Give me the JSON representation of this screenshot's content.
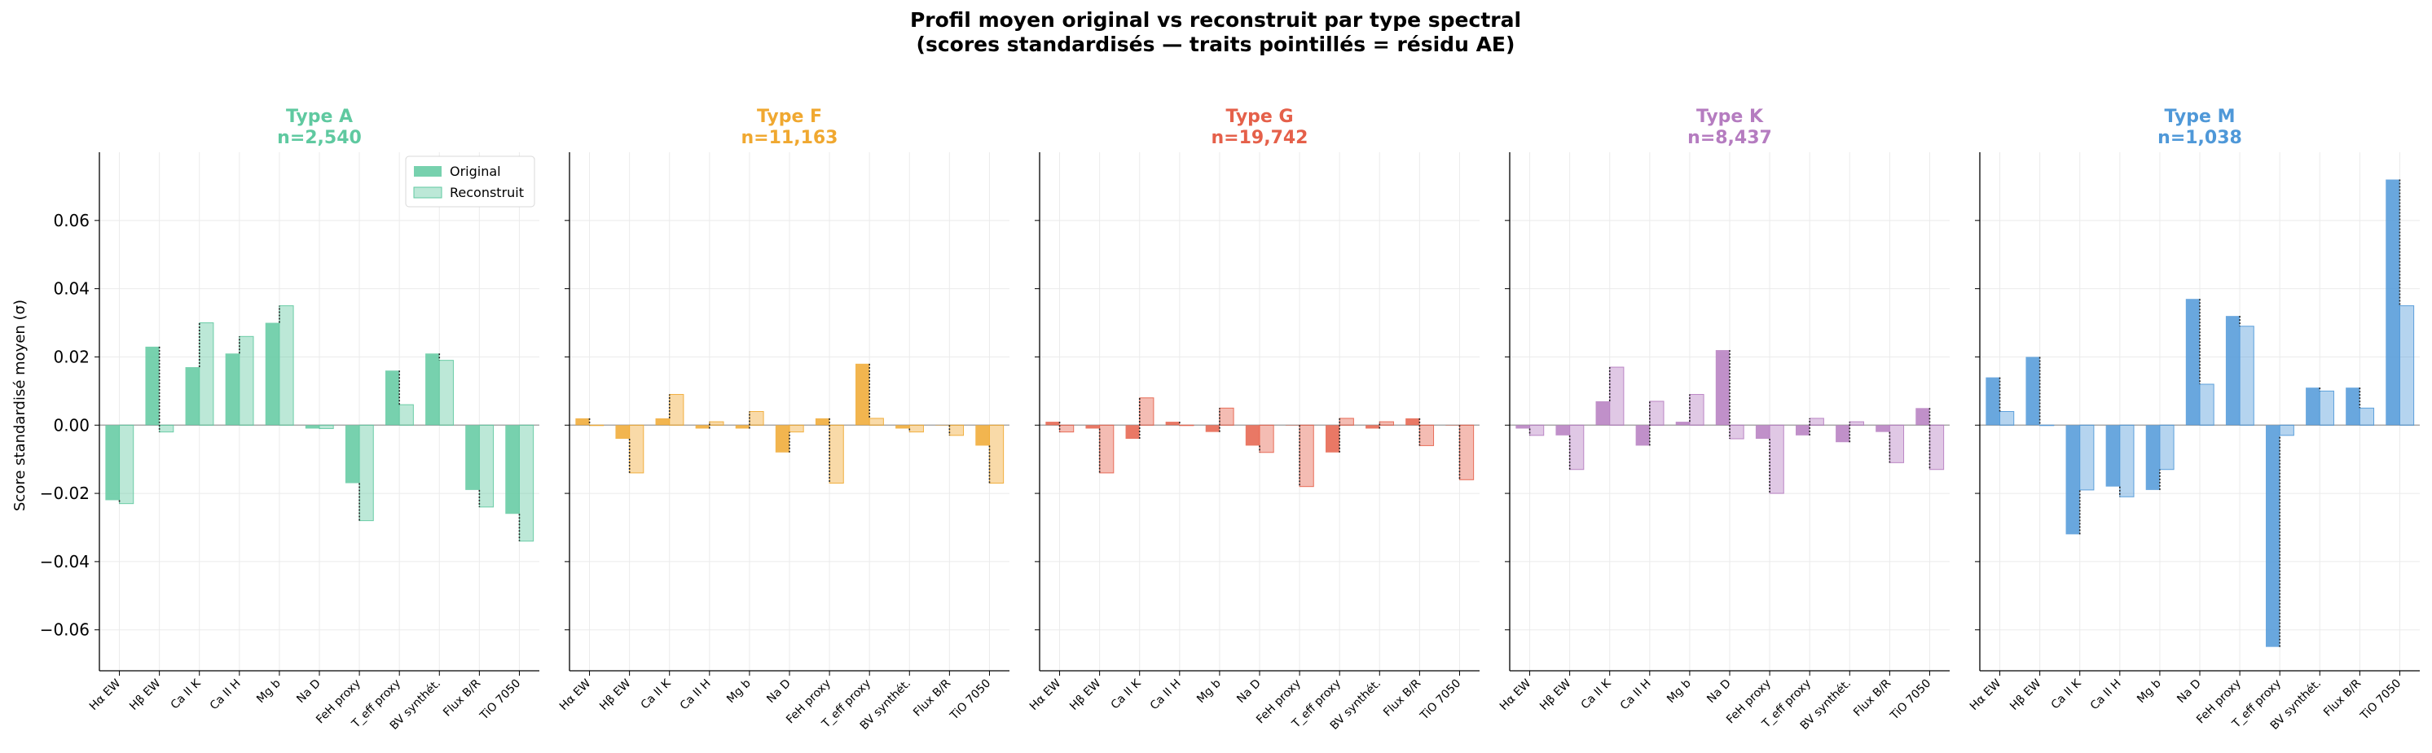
{
  "figure": {
    "title_line1": "Profil moyen original vs reconstruit par type spectral",
    "title_line2": "(scores standardisés — traits pointillés = résidu AE)",
    "ylabel": "Score standardisé moyen (σ)",
    "legend": {
      "original": "Original",
      "reconstruit": "Reconstruit"
    },
    "y_ticks": [
      "0.06",
      "0.04",
      "0.02",
      "0.00",
      "−0.02",
      "−0.04",
      "−0.06"
    ]
  },
  "chart_data": [
    {
      "type": "bar",
      "title": "Type A",
      "subtitle": "n=2,540",
      "color": "#5fc9a0",
      "categories": [
        "Hα EW",
        "Hβ EW",
        "Ca II K",
        "Ca II H",
        "Mg b",
        "Na D",
        "FeH proxy",
        "T_eff proxy",
        "BV synthét.",
        "Flux B/R",
        "TiO 7050"
      ],
      "series": [
        {
          "name": "Original",
          "values": [
            -0.022,
            0.023,
            0.017,
            0.021,
            0.03,
            -0.001,
            -0.017,
            0.016,
            0.021,
            -0.019,
            -0.026
          ]
        },
        {
          "name": "Reconstruit",
          "values": [
            -0.023,
            -0.002,
            0.03,
            0.026,
            0.035,
            -0.001,
            -0.028,
            0.006,
            0.019,
            -0.024,
            -0.034
          ]
        }
      ],
      "ylim": [
        -0.072,
        0.08
      ],
      "grid": true,
      "legend_position": "top-right"
    },
    {
      "type": "bar",
      "title": "Type F",
      "subtitle": "n=11,163",
      "color": "#f0a830",
      "categories": [
        "Hα EW",
        "Hβ EW",
        "Ca II K",
        "Ca II H",
        "Mg b",
        "Na D",
        "FeH proxy",
        "T_eff proxy",
        "BV synthét.",
        "Flux B/R",
        "TiO 7050"
      ],
      "series": [
        {
          "name": "Original",
          "values": [
            0.002,
            -0.004,
            0.002,
            -0.001,
            -0.001,
            -0.008,
            0.002,
            0.018,
            -0.001,
            0.0,
            -0.006
          ]
        },
        {
          "name": "Reconstruit",
          "values": [
            0.0,
            -0.014,
            0.009,
            0.001,
            0.004,
            -0.002,
            -0.017,
            0.002,
            -0.002,
            -0.003,
            -0.017
          ]
        }
      ],
      "ylim": [
        -0.072,
        0.08
      ],
      "grid": true
    },
    {
      "type": "bar",
      "title": "Type G",
      "subtitle": "n=19,742",
      "color": "#e5604a",
      "categories": [
        "Hα EW",
        "Hβ EW",
        "Ca II K",
        "Ca II H",
        "Mg b",
        "Na D",
        "FeH proxy",
        "T_eff proxy",
        "BV synthét.",
        "Flux B/R",
        "TiO 7050"
      ],
      "series": [
        {
          "name": "Original",
          "values": [
            0.001,
            -0.001,
            -0.004,
            0.001,
            -0.002,
            -0.006,
            0.0,
            -0.008,
            -0.001,
            0.002,
            0.0
          ]
        },
        {
          "name": "Reconstruit",
          "values": [
            -0.002,
            -0.014,
            0.008,
            0.0,
            0.005,
            -0.008,
            -0.018,
            0.002,
            0.001,
            -0.006,
            -0.016
          ]
        }
      ],
      "ylim": [
        -0.072,
        0.08
      ],
      "grid": true
    },
    {
      "type": "bar",
      "title": "Type K",
      "subtitle": "n=8,437",
      "color": "#b57cc0",
      "categories": [
        "Hα EW",
        "Hβ EW",
        "Ca II K",
        "Ca II H",
        "Mg b",
        "Na D",
        "FeH proxy",
        "T_eff proxy",
        "BV synthét.",
        "Flux B/R",
        "TiO 7050"
      ],
      "series": [
        {
          "name": "Original",
          "values": [
            -0.001,
            -0.003,
            0.007,
            -0.006,
            0.001,
            0.022,
            -0.004,
            -0.003,
            -0.005,
            -0.002,
            0.005
          ]
        },
        {
          "name": "Reconstruit",
          "values": [
            -0.003,
            -0.013,
            0.017,
            0.007,
            0.009,
            -0.004,
            -0.02,
            0.002,
            0.001,
            -0.011,
            -0.013
          ]
        }
      ],
      "ylim": [
        -0.072,
        0.08
      ],
      "grid": true
    },
    {
      "type": "bar",
      "title": "Type M",
      "subtitle": "n=1,038",
      "color": "#4f98d8",
      "categories": [
        "Hα EW",
        "Hβ EW",
        "Ca II K",
        "Ca II H",
        "Mg b",
        "Na D",
        "FeH proxy",
        "T_eff proxy",
        "BV synthét.",
        "Flux B/R",
        "TiO 7050"
      ],
      "series": [
        {
          "name": "Original",
          "values": [
            0.014,
            0.02,
            -0.032,
            -0.018,
            -0.019,
            0.037,
            0.032,
            -0.065,
            0.011,
            0.011,
            0.072
          ]
        },
        {
          "name": "Reconstruit",
          "values": [
            0.004,
            0.0,
            -0.019,
            -0.021,
            -0.013,
            0.012,
            0.029,
            -0.003,
            0.01,
            0.005,
            0.035
          ]
        }
      ],
      "ylim": [
        -0.072,
        0.08
      ],
      "grid": true
    }
  ]
}
